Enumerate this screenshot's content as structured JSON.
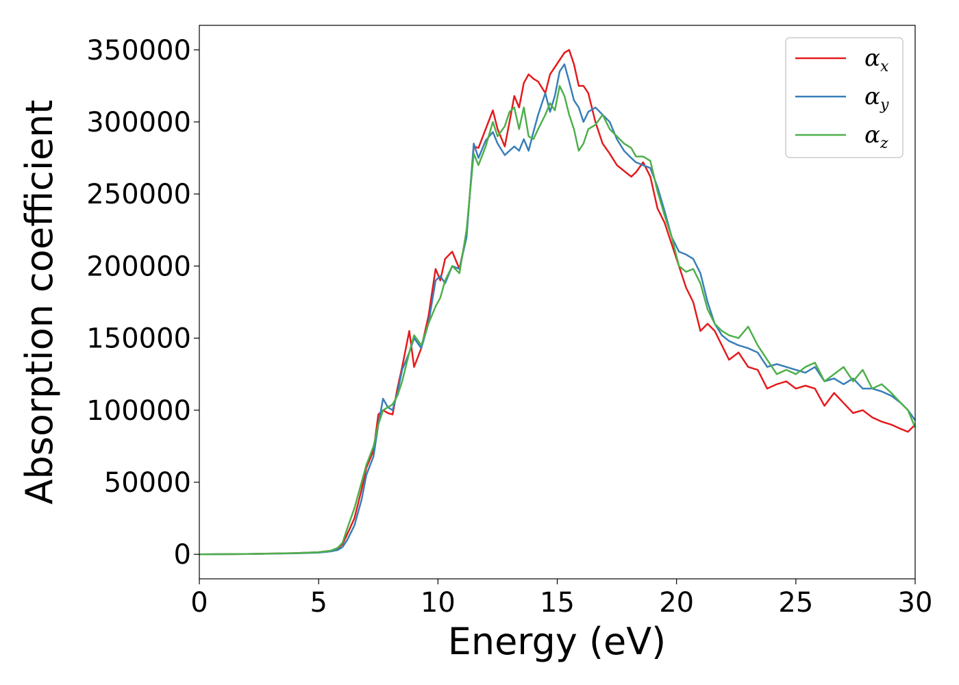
{
  "chart_data": {
    "type": "line",
    "title": "",
    "xlabel": "Energy (eV)",
    "ylabel": "Absorption coefficient",
    "xlim": [
      0,
      30
    ],
    "ylim": [
      -17000,
      367000
    ],
    "xticks": [
      0,
      5,
      10,
      15,
      20,
      25,
      30
    ],
    "yticks": [
      0,
      50000,
      100000,
      150000,
      200000,
      250000,
      300000,
      350000
    ],
    "grid": false,
    "legend_position": "top-right",
    "series": [
      {
        "name": "alpha_x",
        "legend_symbol": "α",
        "legend_subscript": "x",
        "color": "#e41a1c",
        "x": [
          0,
          2,
          4,
          5,
          5.5,
          5.8,
          6.0,
          6.2,
          6.5,
          6.8,
          7.0,
          7.3,
          7.5,
          7.7,
          7.9,
          8.1,
          8.3,
          8.5,
          8.8,
          9.0,
          9.3,
          9.6,
          9.9,
          10.1,
          10.3,
          10.6,
          10.9,
          11.2,
          11.5,
          11.7,
          12.0,
          12.3,
          12.5,
          12.8,
          13.0,
          13.2,
          13.4,
          13.6,
          13.8,
          14.0,
          14.2,
          14.5,
          14.7,
          14.9,
          15.1,
          15.3,
          15.5,
          15.7,
          15.9,
          16.1,
          16.3,
          16.6,
          16.9,
          17.2,
          17.5,
          17.8,
          18.1,
          18.3,
          18.6,
          18.9,
          19.2,
          19.5,
          19.8,
          20.1,
          20.4,
          20.7,
          21.0,
          21.3,
          21.6,
          21.9,
          22.2,
          22.6,
          23.0,
          23.4,
          23.8,
          24.2,
          24.6,
          25.0,
          25.4,
          25.8,
          26.2,
          26.6,
          27.0,
          27.4,
          27.8,
          28.2,
          28.6,
          29.0,
          29.4,
          29.7,
          30.0
        ],
        "y": [
          0,
          200,
          800,
          1500,
          2500,
          4000,
          7000,
          14000,
          25000,
          45000,
          60000,
          72000,
          97000,
          100000,
          98000,
          97000,
          115000,
          130000,
          155000,
          130000,
          143000,
          165000,
          198000,
          190000,
          205000,
          210000,
          198000,
          222000,
          283000,
          282000,
          295000,
          308000,
          295000,
          283000,
          300000,
          318000,
          310000,
          327000,
          333000,
          330000,
          328000,
          320000,
          333000,
          338000,
          343000,
          348000,
          350000,
          340000,
          325000,
          325000,
          320000,
          300000,
          285000,
          278000,
          270000,
          266000,
          262000,
          265000,
          272000,
          262000,
          240000,
          230000,
          215000,
          200000,
          185000,
          175000,
          155000,
          160000,
          155000,
          145000,
          135000,
          140000,
          130000,
          128000,
          115000,
          118000,
          120000,
          115000,
          117000,
          115000,
          103000,
          112000,
          105000,
          98000,
          100000,
          95000,
          92000,
          90000,
          87000,
          85000,
          90000
        ]
      },
      {
        "name": "alpha_y",
        "legend_symbol": "α",
        "legend_subscript": "y",
        "color": "#377eb8",
        "x": [
          0,
          2,
          4,
          5,
          5.5,
          5.8,
          6.0,
          6.2,
          6.5,
          6.8,
          7.0,
          7.3,
          7.5,
          7.7,
          7.9,
          8.1,
          8.3,
          8.5,
          8.8,
          9.0,
          9.3,
          9.6,
          9.9,
          10.1,
          10.3,
          10.6,
          10.9,
          11.2,
          11.5,
          11.7,
          12.0,
          12.3,
          12.5,
          12.8,
          13.0,
          13.2,
          13.4,
          13.6,
          13.8,
          14.0,
          14.2,
          14.5,
          14.7,
          14.9,
          15.1,
          15.3,
          15.5,
          15.7,
          15.9,
          16.1,
          16.3,
          16.6,
          16.9,
          17.2,
          17.5,
          17.8,
          18.1,
          18.3,
          18.6,
          18.9,
          19.2,
          19.5,
          19.8,
          20.1,
          20.4,
          20.7,
          21.0,
          21.3,
          21.6,
          21.9,
          22.2,
          22.6,
          23.0,
          23.4,
          23.8,
          24.2,
          24.6,
          25.0,
          25.4,
          25.8,
          26.2,
          26.6,
          27.0,
          27.4,
          27.8,
          28.2,
          28.6,
          29.0,
          29.4,
          29.7,
          30.0
        ],
        "y": [
          0,
          200,
          700,
          1200,
          2000,
          3000,
          5000,
          10000,
          20000,
          38000,
          55000,
          68000,
          90000,
          108000,
          102000,
          100000,
          112000,
          128000,
          140000,
          150000,
          143000,
          160000,
          190000,
          193000,
          188000,
          200000,
          198000,
          220000,
          285000,
          275000,
          287000,
          293000,
          285000,
          277000,
          280000,
          283000,
          280000,
          288000,
          280000,
          293000,
          305000,
          320000,
          307000,
          318000,
          335000,
          340000,
          328000,
          315000,
          310000,
          300000,
          307000,
          310000,
          305000,
          300000,
          288000,
          280000,
          275000,
          272000,
          270000,
          268000,
          255000,
          238000,
          220000,
          210000,
          208000,
          205000,
          195000,
          175000,
          160000,
          152000,
          148000,
          145000,
          143000,
          140000,
          130000,
          132000,
          130000,
          128000,
          126000,
          130000,
          120000,
          122000,
          118000,
          122000,
          115000,
          115000,
          113000,
          110000,
          105000,
          100000,
          93000
        ]
      },
      {
        "name": "alpha_z",
        "legend_symbol": "α",
        "legend_subscript": "z",
        "color": "#4daf4a",
        "x": [
          0,
          2,
          4,
          5,
          5.5,
          5.8,
          6.0,
          6.2,
          6.5,
          6.8,
          7.0,
          7.3,
          7.5,
          7.7,
          7.9,
          8.1,
          8.3,
          8.5,
          8.8,
          9.0,
          9.3,
          9.6,
          9.9,
          10.1,
          10.3,
          10.6,
          10.9,
          11.2,
          11.5,
          11.7,
          12.0,
          12.3,
          12.5,
          12.8,
          13.0,
          13.2,
          13.4,
          13.6,
          13.8,
          14.0,
          14.2,
          14.5,
          14.7,
          14.9,
          15.1,
          15.3,
          15.5,
          15.7,
          15.9,
          16.1,
          16.3,
          16.6,
          16.9,
          17.2,
          17.5,
          17.8,
          18.1,
          18.3,
          18.6,
          18.9,
          19.2,
          19.5,
          19.8,
          20.1,
          20.4,
          20.7,
          21.0,
          21.3,
          21.6,
          21.9,
          22.2,
          22.6,
          23.0,
          23.4,
          23.8,
          24.2,
          24.6,
          25.0,
          25.4,
          25.8,
          26.2,
          26.6,
          27.0,
          27.4,
          27.8,
          28.2,
          28.6,
          29.0,
          29.4,
          29.7,
          30.0
        ],
        "y": [
          0,
          200,
          800,
          1500,
          2500,
          4500,
          8000,
          18000,
          32000,
          50000,
          62000,
          75000,
          90000,
          100000,
          102000,
          104000,
          110000,
          120000,
          140000,
          152000,
          145000,
          160000,
          172000,
          178000,
          190000,
          200000,
          195000,
          225000,
          278000,
          270000,
          283000,
          300000,
          290000,
          297000,
          307000,
          310000,
          295000,
          310000,
          290000,
          288000,
          295000,
          305000,
          313000,
          308000,
          325000,
          318000,
          305000,
          295000,
          280000,
          285000,
          295000,
          298000,
          305000,
          295000,
          290000,
          285000,
          282000,
          276000,
          276000,
          273000,
          252000,
          235000,
          220000,
          200000,
          196000,
          198000,
          188000,
          170000,
          160000,
          155000,
          152000,
          150000,
          158000,
          145000,
          135000,
          125000,
          128000,
          125000,
          130000,
          133000,
          120000,
          125000,
          130000,
          120000,
          128000,
          115000,
          118000,
          112000,
          105000,
          100000,
          88000
        ]
      }
    ]
  }
}
